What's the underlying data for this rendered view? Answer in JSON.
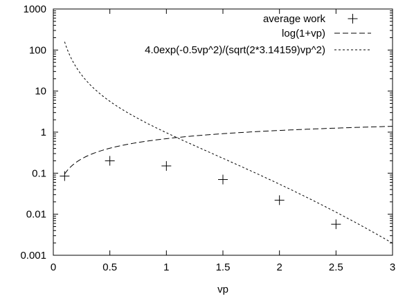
{
  "chart_data": {
    "type": "scatter",
    "title": "",
    "xlabel": "vp",
    "ylabel": "",
    "xlim": [
      0,
      3
    ],
    "ylim": [
      0.001,
      1000
    ],
    "y_scale": "log",
    "grid": false,
    "legend_position": "top-right",
    "x_ticks": [
      "0",
      "0.5",
      "1",
      "1.5",
      "2",
      "2.5",
      "3"
    ],
    "y_ticks": [
      "0.001",
      "0.01",
      "0.1",
      "1",
      "10",
      "100",
      "1000"
    ],
    "series": [
      {
        "name": "average work",
        "kind": "points",
        "marker": "plus",
        "x": [
          0.1,
          0.5,
          1.0,
          1.5,
          2.0,
          2.5
        ],
        "y": [
          0.085,
          0.2,
          0.15,
          0.07,
          0.022,
          0.0057
        ]
      },
      {
        "name": "log(1+vp)",
        "kind": "function",
        "dash": "long",
        "x_range": [
          0.1,
          3
        ]
      },
      {
        "name": "4.0exp(-0.5vp^2)/(sqrt(2*3.14159)vp^2)",
        "kind": "function",
        "dash": "short",
        "x_range": [
          0.1,
          3
        ]
      }
    ]
  }
}
